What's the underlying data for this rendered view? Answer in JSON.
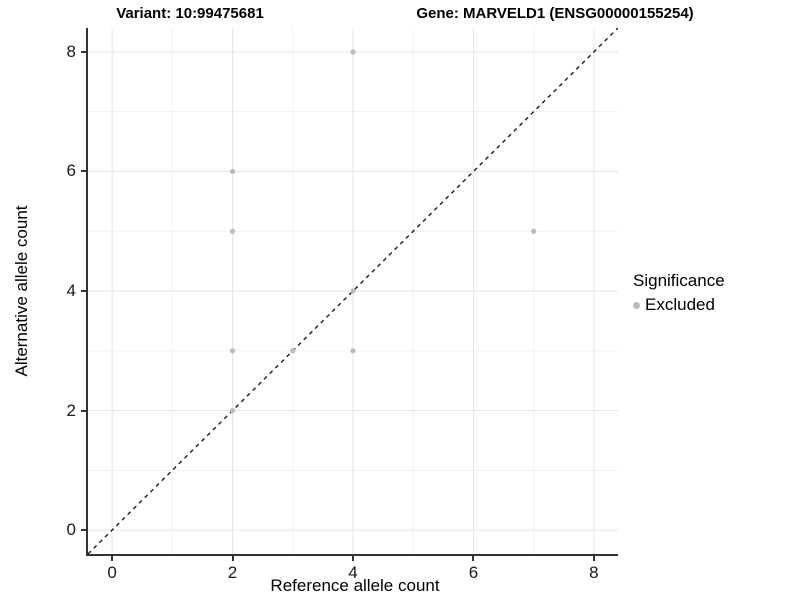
{
  "chart_data": {
    "type": "scatter",
    "title_left": "Variant: 10:99475681",
    "title_right": "Gene: MARVELD1 (ENSG00000155254)",
    "xlabel": "Reference allele count",
    "ylabel": "Alternative allele count",
    "xlim": [
      -0.4,
      8.4
    ],
    "ylim": [
      -0.4,
      8.4
    ],
    "xticks": [
      0,
      2,
      4,
      6,
      8
    ],
    "yticks": [
      0,
      2,
      4,
      6,
      8
    ],
    "xgrid": [
      0,
      1,
      2,
      3,
      4,
      5,
      6,
      7,
      8
    ],
    "ygrid": [
      0,
      1,
      2,
      3,
      4,
      5,
      6,
      7,
      8
    ],
    "grid_on": true,
    "series": [
      {
        "name": "Excluded",
        "color": "#bcbcbc",
        "points": [
          [
            2,
            2
          ],
          [
            2,
            3
          ],
          [
            2,
            5
          ],
          [
            2,
            6
          ],
          [
            3,
            3
          ],
          [
            4,
            3
          ],
          [
            4,
            4
          ],
          [
            4,
            8
          ],
          [
            7,
            5
          ]
        ]
      }
    ],
    "reference_line": {
      "kind": "identity",
      "style": "dashed",
      "color": "#1a1a1a"
    },
    "legend": {
      "position": "right",
      "title": "Significance",
      "items": [
        {
          "label": "Excluded",
          "color": "#bcbcbc"
        }
      ]
    },
    "colors": {
      "major_grid": "#e5e5e5",
      "minor_grid": "#f1f1f1",
      "axis_line": "#333333",
      "point": "#bcbcbc"
    }
  }
}
